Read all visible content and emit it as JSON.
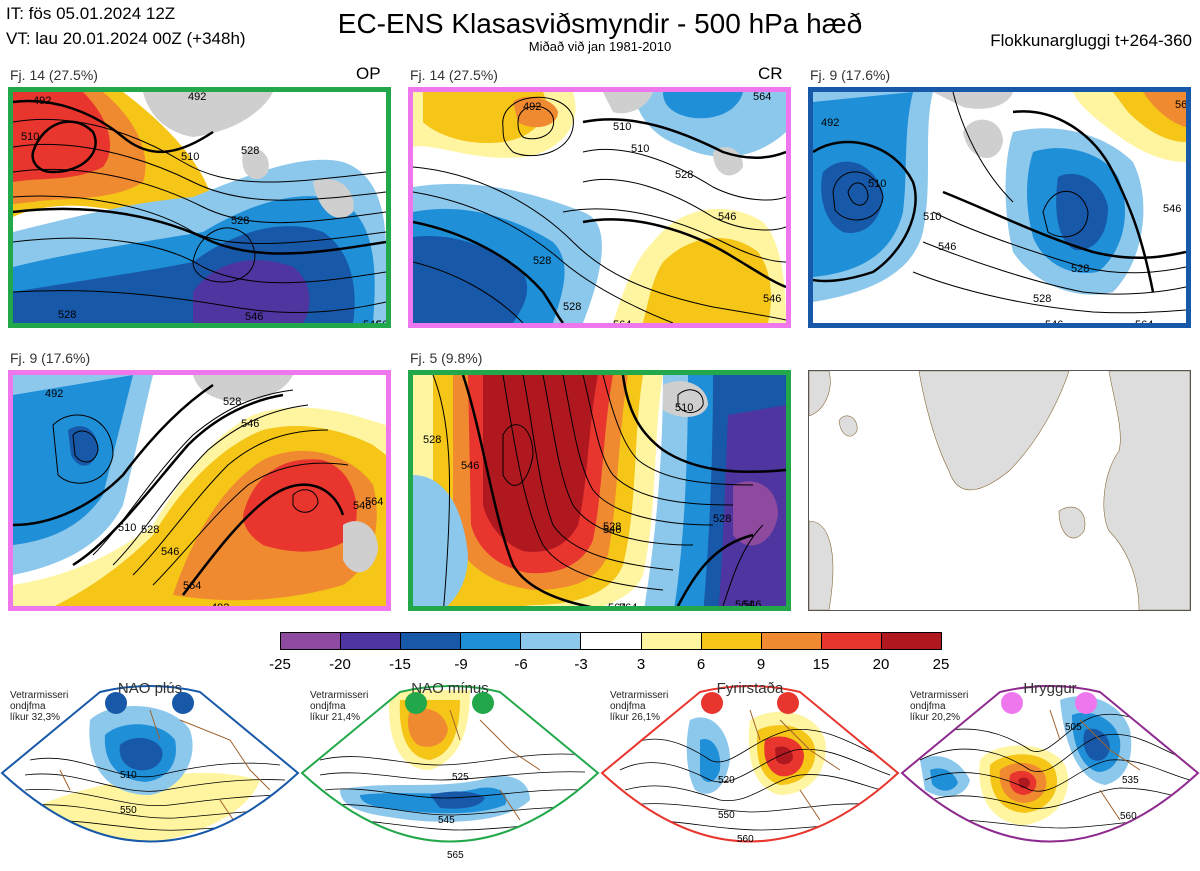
{
  "header": {
    "init_time": "IT: fös 05.01.2024 12Z",
    "valid_time": "VT: lau 20.01.2024 00Z  (+348h)",
    "title": "EC-ENS Klasasviðsmyndir - 500 hPa hæð",
    "subtitle": "Miðað við jan 1981-2010",
    "window": "Flokkunargluggi t+264-360"
  },
  "panels": [
    {
      "label": "Fj. 14 (27.5%)",
      "tag": "OP",
      "border_color": "#22a84a",
      "contours": [
        "492",
        "510",
        "510",
        "528",
        "528",
        "528",
        "546",
        "546",
        "564",
        "492"
      ]
    },
    {
      "label": "Fj. 14 (27.5%)",
      "tag": "CR",
      "border_color": "#ee77ee",
      "contours": [
        "492",
        "510",
        "510",
        "528",
        "528",
        "528",
        "546",
        "546",
        "564",
        "564"
      ]
    },
    {
      "label": "Fj. 9 (17.6%)",
      "tag": "",
      "border_color": "#1758a8",
      "contours": [
        "492",
        "510",
        "510",
        "528",
        "528",
        "546",
        "546",
        "546",
        "564",
        "564"
      ]
    },
    {
      "label": "Fj. 9 (17.6%)",
      "tag": "",
      "border_color": "#ee77ee",
      "contours": [
        "492",
        "510",
        "528",
        "528",
        "546",
        "546",
        "546",
        "564",
        "564",
        "492"
      ]
    },
    {
      "label": "Fj. 5 (9.8%)",
      "tag": "",
      "border_color": "#22a84a",
      "contours": [
        "510",
        "528",
        "528",
        "528",
        "546",
        "546",
        "546",
        "564",
        "564",
        "564"
      ]
    }
  ],
  "colorbar": {
    "colors": [
      "#8e4a9e",
      "#4e35a0",
      "#1758a8",
      "#1f8fd8",
      "#8cc8ec",
      "#ffffff",
      "#fff5a0",
      "#f5c518",
      "#f08a30",
      "#e8352e",
      "#b01820"
    ],
    "ticks": [
      "-25",
      "-20",
      "-15",
      "-9",
      "-6",
      "-3",
      "3",
      "6",
      "9",
      "15",
      "20",
      "25"
    ]
  },
  "regimes": [
    {
      "title": "NAO plús",
      "info": [
        "Vetrarmisseri",
        "ondjfma",
        "líkur 32,3%"
      ],
      "color": "#1758a8",
      "labels": [
        "510",
        "550"
      ]
    },
    {
      "title": "NAO mínus",
      "info": [
        "Vetrarmisseri",
        "ondjfma",
        "líkur 21,4%"
      ],
      "color": "#22a84a",
      "labels": [
        "525",
        "545",
        "565"
      ]
    },
    {
      "title": "Fyrirstaða",
      "info": [
        "Vetrarmisseri",
        "ondjfma",
        "líkur 26,1%"
      ],
      "color": "#e8352e",
      "labels": [
        "520",
        "550",
        "560"
      ]
    },
    {
      "title": "Hryggur",
      "info": [
        "Vetrarmisseri",
        "ondjfma",
        "líkur 20,2%"
      ],
      "color": "#ee77ee",
      "labels": [
        "505",
        "535",
        "560"
      ]
    }
  ]
}
